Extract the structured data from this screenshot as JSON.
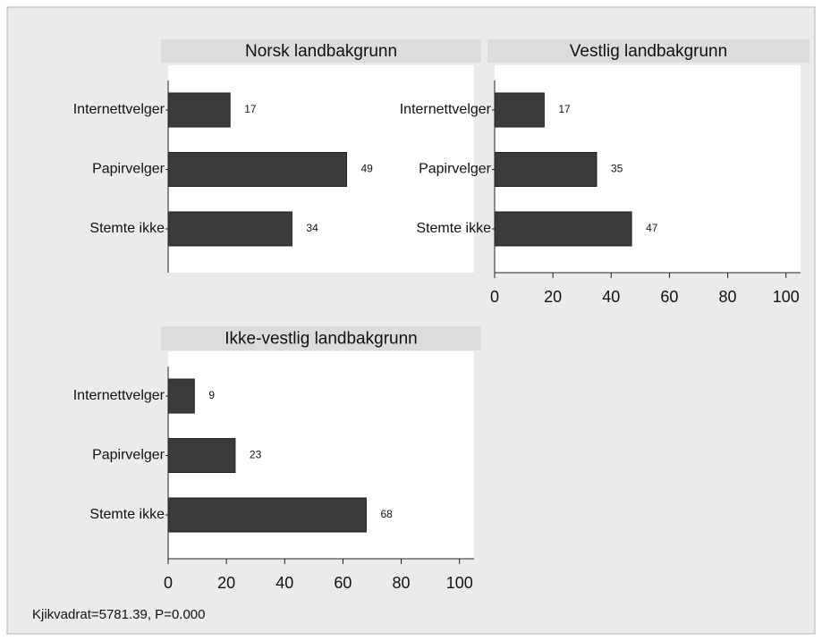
{
  "chart_data": [
    {
      "type": "bar",
      "orientation": "horizontal",
      "title": "Norsk landbakgrunn",
      "categories": [
        "Internettvelger",
        "Papirvelger",
        "Stemte ikke"
      ],
      "values": [
        17,
        49,
        34
      ],
      "color": "#3b3b3b",
      "xlim": [
        0,
        84
      ]
    },
    {
      "type": "bar",
      "orientation": "horizontal",
      "title": "Vestlig landbakgrunn",
      "categories": [
        "Internettvelger",
        "Papirvelger",
        "Stemte ikke"
      ],
      "values": [
        17,
        35,
        47
      ],
      "color": "#3b3b3b",
      "xlim": [
        0,
        105
      ],
      "xticks": [
        0,
        20,
        40,
        60,
        80,
        100
      ]
    },
    {
      "type": "bar",
      "orientation": "horizontal",
      "title": "Ikke-vestlig landbakgrunn",
      "categories": [
        "Internettvelger",
        "Papirvelger",
        "Stemte ikke"
      ],
      "values": [
        9,
        23,
        68
      ],
      "color": "#3b3b3b",
      "xlim": [
        0,
        105
      ],
      "xticks": [
        0,
        20,
        40,
        60,
        80,
        100
      ]
    }
  ],
  "note": "Kjikvadrat=5781.39, P=0.000"
}
